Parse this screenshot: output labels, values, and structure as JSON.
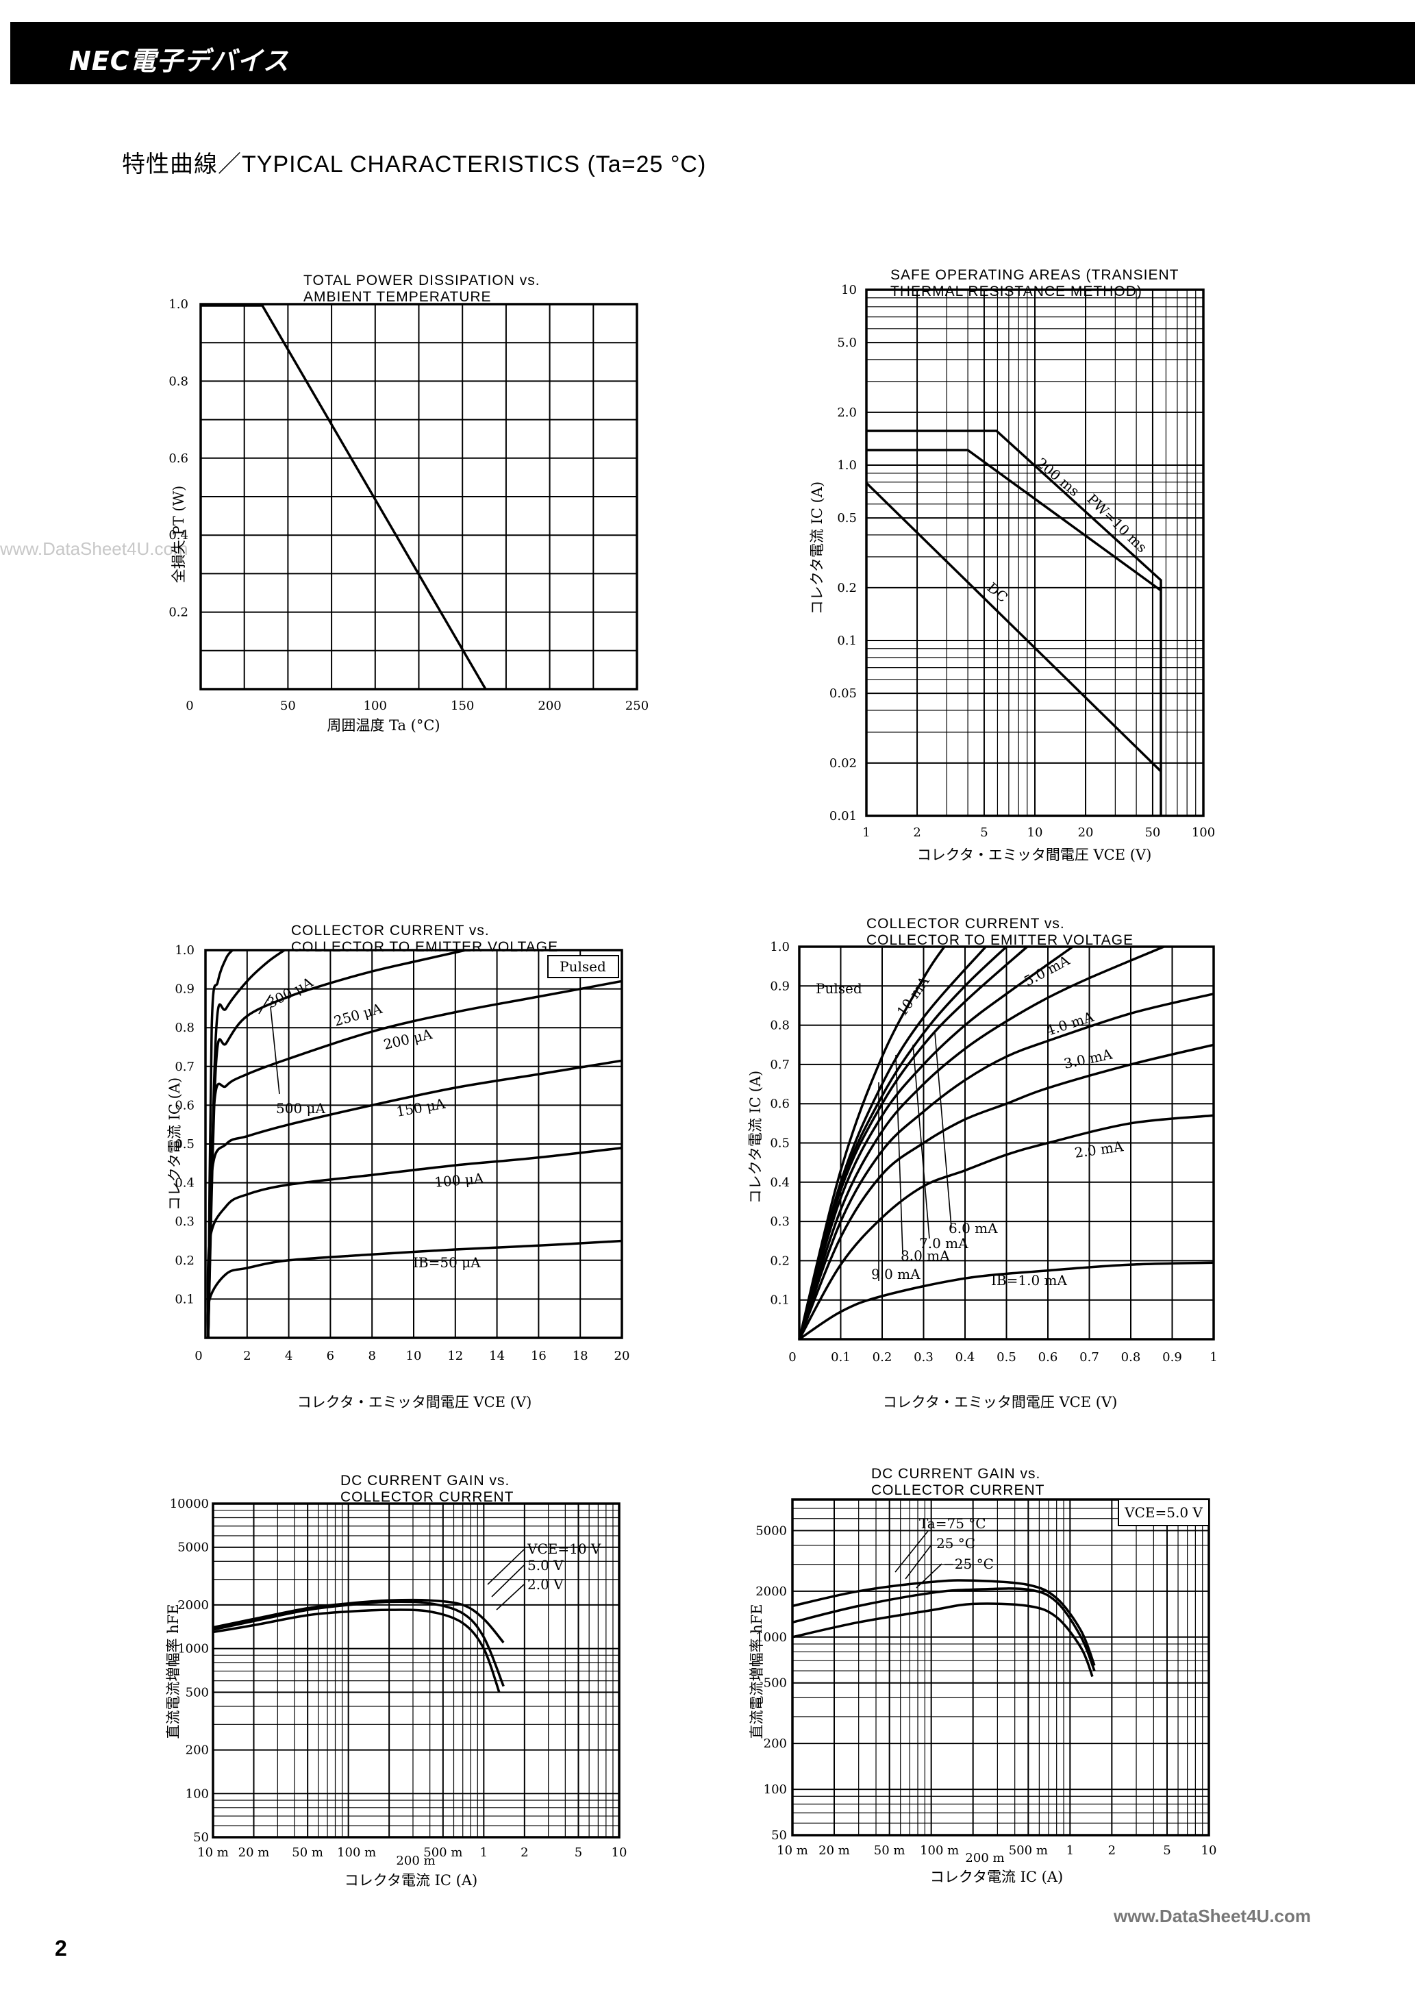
{
  "header": {
    "brand": "NEC電子デバイス",
    "section_title": "特性曲線／TYPICAL CHARACTERISTICS (Ta=25 °C)"
  },
  "watermarks": {
    "left": "www.DataSheet4U.com",
    "right": "www.DataSheet4U.com"
  },
  "page_number": "2",
  "charts": {
    "pd": {
      "title_line1": "TOTAL POWER DISSIPATION vs.",
      "title_line2": "AMBIENT TEMPERATURE",
      "ylabel": "全損失  PT (W)",
      "xlabel": "周囲温度   Ta (°C)",
      "yticks": [
        "1.0",
        "0.8",
        "0.6",
        "0.4",
        "0.2"
      ],
      "xticks": [
        "0",
        "50",
        "100",
        "150",
        "200",
        "250"
      ]
    },
    "soa": {
      "title_line1": "SAFE OPERATING AREAS (TRANSIENT",
      "title_line2": "THERMAL RESISTANCE METHOD)",
      "ylabel": "コレクタ電流  IC (A)",
      "xlabel": "コレクタ・エミッタ間電圧   VCE (V)",
      "yticks": [
        "10",
        "5.0",
        "2.0",
        "1.0",
        "0.5",
        "0.2",
        "0.1",
        "0.05",
        "0.02",
        "0.01"
      ],
      "xticks": [
        "1",
        "2",
        "5",
        "10",
        "20",
        "50",
        "100"
      ],
      "labels": {
        "pw10": "PW=10 ms",
        "pw200": "200 ms",
        "dc": "DC"
      }
    },
    "ic_vce_20": {
      "title_line1": "COLLECTOR CURRENT vs.",
      "title_line2": "COLLECTOR TO EMITTER VOLTAGE",
      "ylabel": "コレクタ電流  IC (A)",
      "xlabel": "コレクタ・エミッタ間電圧   VCE (V)",
      "yticks": [
        "1.0",
        "0.9",
        "0.8",
        "0.7",
        "0.6",
        "0.5",
        "0.4",
        "0.3",
        "0.2",
        "0.1"
      ],
      "xticks": [
        "0",
        "2",
        "4",
        "6",
        "8",
        "10",
        "12",
        "14",
        "16",
        "18",
        "20"
      ],
      "box_label": "Pulsed",
      "labels": {
        "l300": "300 μA",
        "l250": "250 μA",
        "l200": "200 μA",
        "l500": "500 μA",
        "l150": "150 μA",
        "l100": "100 μA",
        "l50": "IB=50 μA"
      }
    },
    "ic_vce_1": {
      "title_line1": "COLLECTOR CURRENT vs.",
      "title_line2": "COLLECTOR TO EMITTER VOLTAGE",
      "ylabel": "コレクタ電流  IC (A)",
      "xlabel": "コレクタ・エミッタ間電圧   VCE (V)",
      "yticks": [
        "1.0",
        "0.9",
        "0.8",
        "0.7",
        "0.6",
        "0.5",
        "0.4",
        "0.3",
        "0.2",
        "0.1"
      ],
      "xticks": [
        "0",
        "0.1",
        "0.2",
        "0.3",
        "0.4",
        "0.5",
        "0.6",
        "0.7",
        "0.8",
        "0.9",
        "1"
      ],
      "box_label": "Pulsed",
      "labels": {
        "l10": "10 mA",
        "l5": "5.0 mA",
        "l4": "4.0 mA",
        "l3": "3.0 mA",
        "l2": "2.0 mA",
        "l6": "6.0 mA",
        "l7": "7.0 mA",
        "l8": "8.0 mA",
        "l9": "9.0 mA",
        "l1": "IB=1.0 mA"
      }
    },
    "hfe_vce": {
      "title_line1": "DC CURRENT GAIN vs.",
      "title_line2": "COLLECTOR CURRENT",
      "ylabel": "直流電流増幅率   hFE",
      "xlabel": "コレクタ電流   IC (A)",
      "yticks": [
        "10000",
        "5000",
        "2000",
        "1000",
        "500",
        "200",
        "100",
        "50"
      ],
      "xticks": [
        "10 m",
        "20 m",
        "50 m",
        "100 m",
        "500 m",
        "1",
        "2",
        "5",
        "10"
      ],
      "xtick_extra": "200 m",
      "labels": {
        "v10": "VCE=10 V",
        "v5": "5.0 V",
        "v2": "2.0 V"
      }
    },
    "hfe_ta": {
      "title_line1": "DC CURRENT GAIN vs.",
      "title_line2": "COLLECTOR CURRENT",
      "ylabel": "直流電流増幅率   hFE",
      "xlabel": "コレクタ電流   IC (A)",
      "yticks": [
        "5000",
        "2000",
        "1000",
        "500",
        "200",
        "100",
        "50"
      ],
      "xticks": [
        "10 m",
        "20 m",
        "50 m",
        "100 m",
        "500 m",
        "1",
        "2",
        "5",
        "10"
      ],
      "xtick_extra": "200 m",
      "box_label": "VCE=5.0 V",
      "labels": {
        "t75": "Ta=75 °C",
        "t25": "25 °C",
        "tm25": "−25 °C"
      }
    }
  },
  "chart_data": [
    {
      "type": "line",
      "title": "TOTAL POWER DISSIPATION vs. AMBIENT TEMPERATURE",
      "xlabel": "周囲温度 Ta (°C)",
      "ylabel": "全損失 PT (W)",
      "xlim": [
        0,
        250
      ],
      "ylim": [
        0,
        1.0
      ],
      "grid": true,
      "series": [
        {
          "name": "PT",
          "x": [
            0,
            25,
            150
          ],
          "y": [
            1.0,
            1.0,
            0.0
          ]
        }
      ]
    },
    {
      "type": "line",
      "title": "SAFE OPERATING AREAS (TRANSIENT THERMAL RESISTANCE METHOD)",
      "xlabel": "コレクタ・エミッタ間電圧 VCE (V)",
      "ylabel": "コレクタ電流 IC (A)",
      "xscale": "log",
      "yscale": "log",
      "xlim": [
        1,
        100
      ],
      "ylim": [
        0.01,
        10
      ],
      "grid": true,
      "series": [
        {
          "name": "PW=10 ms",
          "x": [
            1,
            11,
            50,
            50
          ],
          "y": [
            2.0,
            2.0,
            0.25,
            0.01
          ]
        },
        {
          "name": "200 ms",
          "x": [
            1,
            7,
            50
          ],
          "y": [
            1.5,
            1.5,
            0.21
          ]
        },
        {
          "name": "DC",
          "x": [
            1,
            50
          ],
          "y": [
            1.0,
            0.02
          ]
        }
      ]
    },
    {
      "type": "line",
      "title": "COLLECTOR CURRENT vs. COLLECTOR TO EMITTER VOLTAGE (Pulsed)",
      "xlabel": "コレクタ・エミッタ間電圧 VCE (V)",
      "ylabel": "コレクタ電流 IC (A)",
      "xlim": [
        0,
        20
      ],
      "ylim": [
        0,
        1.0
      ],
      "grid": true,
      "series": [
        {
          "name": "IB=50 μA",
          "x": [
            0.2,
            1,
            2,
            4,
            8,
            12,
            16,
            20
          ],
          "y": [
            0.1,
            0.165,
            0.18,
            0.2,
            0.215,
            0.228,
            0.238,
            0.25
          ]
        },
        {
          "name": "100 μA",
          "x": [
            0.2,
            1,
            2,
            4,
            8,
            12,
            16,
            20
          ],
          "y": [
            0.25,
            0.34,
            0.37,
            0.395,
            0.42,
            0.445,
            0.465,
            0.49
          ]
        },
        {
          "name": "150 μA",
          "x": [
            0.3,
            1,
            2,
            4,
            8,
            12,
            16,
            20
          ],
          "y": [
            0.42,
            0.5,
            0.52,
            0.55,
            0.6,
            0.645,
            0.68,
            0.715
          ]
        },
        {
          "name": "200 μA",
          "x": [
            0.4,
            1,
            2,
            4,
            8,
            12,
            16,
            20
          ],
          "y": [
            0.59,
            0.65,
            0.68,
            0.72,
            0.79,
            0.84,
            0.88,
            0.92
          ]
        },
        {
          "name": "250 μA",
          "x": [
            0.5,
            1,
            2,
            4,
            6,
            8,
            10,
            12.5
          ],
          "y": [
            0.7,
            0.76,
            0.83,
            0.88,
            0.915,
            0.945,
            0.97,
            1.0
          ]
        },
        {
          "name": "300 μA",
          "x": [
            0.5,
            1,
            2,
            3,
            3.8
          ],
          "y": [
            0.78,
            0.85,
            0.92,
            0.97,
            1.0
          ]
        },
        {
          "name": "500 μA",
          "x": [
            0.3,
            0.6,
            1.0,
            1.3
          ],
          "y": [
            0.8,
            0.92,
            0.98,
            1.0
          ]
        }
      ]
    },
    {
      "type": "line",
      "title": "COLLECTOR CURRENT vs. COLLECTOR TO EMITTER VOLTAGE (Pulsed)",
      "xlabel": "コレクタ・エミッタ間電圧 VCE (V)",
      "ylabel": "コレクタ電流 IC (A)",
      "xlim": [
        0,
        1
      ],
      "ylim": [
        0,
        1.0
      ],
      "grid": true,
      "series": [
        {
          "name": "IB=1.0 mA",
          "x": [
            0,
            0.1,
            0.2,
            0.4,
            0.6,
            0.8,
            1.0
          ],
          "y": [
            0,
            0.07,
            0.11,
            0.155,
            0.175,
            0.19,
            0.195
          ]
        },
        {
          "name": "2.0 mA",
          "x": [
            0,
            0.1,
            0.2,
            0.3,
            0.4,
            0.5,
            0.6,
            0.8,
            1.0
          ],
          "y": [
            0,
            0.19,
            0.31,
            0.39,
            0.43,
            0.47,
            0.5,
            0.55,
            0.57
          ]
        },
        {
          "name": "3.0 mA",
          "x": [
            0,
            0.1,
            0.2,
            0.3,
            0.4,
            0.5,
            0.6,
            0.8,
            1.0
          ],
          "y": [
            0,
            0.26,
            0.42,
            0.5,
            0.56,
            0.6,
            0.64,
            0.7,
            0.75
          ]
        },
        {
          "name": "4.0 mA",
          "x": [
            0,
            0.1,
            0.2,
            0.3,
            0.4,
            0.5,
            0.6,
            0.8,
            1.0
          ],
          "y": [
            0,
            0.3,
            0.48,
            0.58,
            0.66,
            0.72,
            0.76,
            0.83,
            0.88
          ]
        },
        {
          "name": "5.0 mA",
          "x": [
            0,
            0.1,
            0.2,
            0.3,
            0.4,
            0.5,
            0.6,
            0.7,
            0.88
          ],
          "y": [
            0,
            0.33,
            0.53,
            0.65,
            0.74,
            0.81,
            0.87,
            0.92,
            1.0
          ]
        },
        {
          "name": "6.0 mA",
          "x": [
            0,
            0.1,
            0.2,
            0.3,
            0.4,
            0.5,
            0.66
          ],
          "y": [
            0,
            0.36,
            0.57,
            0.7,
            0.8,
            0.88,
            1.0
          ]
        },
        {
          "name": "7.0 mA",
          "x": [
            0,
            0.1,
            0.2,
            0.3,
            0.4,
            0.55
          ],
          "y": [
            0,
            0.38,
            0.6,
            0.75,
            0.86,
            1.0
          ]
        },
        {
          "name": "8.0 mA",
          "x": [
            0,
            0.1,
            0.2,
            0.3,
            0.4,
            0.5
          ],
          "y": [
            0,
            0.39,
            0.62,
            0.78,
            0.9,
            1.0
          ]
        },
        {
          "name": "9.0 mA",
          "x": [
            0,
            0.1,
            0.2,
            0.3,
            0.45
          ],
          "y": [
            0,
            0.4,
            0.65,
            0.82,
            1.0
          ]
        },
        {
          "name": "10 mA",
          "x": [
            0,
            0.1,
            0.2,
            0.3,
            0.35
          ],
          "y": [
            0,
            0.43,
            0.72,
            0.92,
            1.0
          ]
        }
      ]
    },
    {
      "type": "line",
      "title": "DC CURRENT GAIN vs. COLLECTOR CURRENT",
      "xlabel": "コレクタ電流 IC (A)",
      "ylabel": "直流電流増幅率 hFE",
      "xscale": "log",
      "yscale": "log",
      "xlim": [
        0.01,
        10
      ],
      "ylim": [
        50,
        10000
      ],
      "grid": true,
      "series": [
        {
          "name": "VCE=10 V",
          "x": [
            0.01,
            0.02,
            0.05,
            0.1,
            0.2,
            0.4,
            0.7,
            1.0,
            1.4
          ],
          "y": [
            1400,
            1600,
            1900,
            2050,
            2150,
            2150,
            2000,
            1600,
            1100
          ]
        },
        {
          "name": "5.0 V",
          "x": [
            0.01,
            0.02,
            0.05,
            0.1,
            0.2,
            0.4,
            0.7,
            1.0,
            1.4
          ],
          "y": [
            1350,
            1550,
            1850,
            2000,
            2100,
            2050,
            1750,
            1200,
            550
          ]
        },
        {
          "name": "2.0 V",
          "x": [
            0.01,
            0.02,
            0.05,
            0.1,
            0.2,
            0.4,
            0.7,
            1.0,
            1.3
          ],
          "y": [
            1300,
            1450,
            1700,
            1800,
            1850,
            1800,
            1500,
            1000,
            500
          ]
        }
      ]
    },
    {
      "type": "line",
      "title": "DC CURRENT GAIN vs. COLLECTOR CURRENT (VCE=5.0 V)",
      "xlabel": "コレクタ電流 IC (A)",
      "ylabel": "直流電流増幅率 hFE",
      "xscale": "log",
      "yscale": "log",
      "xlim": [
        0.01,
        10
      ],
      "ylim": [
        50,
        8000
      ],
      "grid": true,
      "series": [
        {
          "name": "Ta=75 °C",
          "x": [
            0.01,
            0.03,
            0.1,
            0.2,
            0.5,
            0.8,
            1.2,
            1.5
          ],
          "y": [
            1600,
            2000,
            2300,
            2350,
            2200,
            1800,
            1100,
            650
          ]
        },
        {
          "name": "25 °C",
          "x": [
            0.01,
            0.03,
            0.1,
            0.2,
            0.5,
            0.8,
            1.2,
            1.5
          ],
          "y": [
            1250,
            1600,
            1950,
            2050,
            2050,
            1700,
            1000,
            600
          ]
        },
        {
          "name": "−25 °C",
          "x": [
            0.01,
            0.03,
            0.1,
            0.2,
            0.5,
            0.8,
            1.2,
            1.45
          ],
          "y": [
            1000,
            1250,
            1500,
            1650,
            1600,
            1350,
            850,
            550
          ]
        }
      ]
    }
  ]
}
